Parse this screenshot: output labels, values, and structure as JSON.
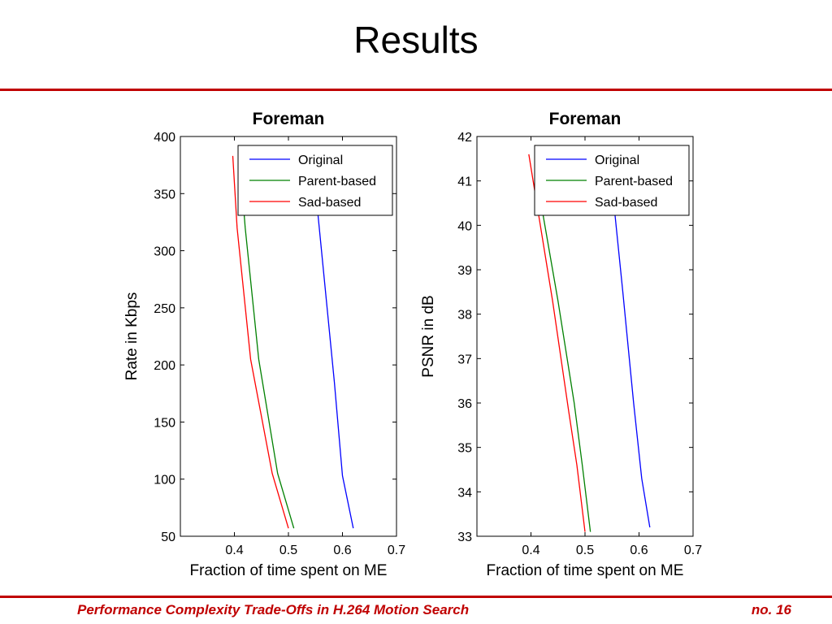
{
  "slide": {
    "title": "Results",
    "footer_title": "Performance Complexity Trade-Offs in H.264 Motion Search",
    "footer_page": "no. 16",
    "accent_color": "#c00000"
  },
  "chart_data": [
    {
      "type": "line",
      "title": "Foreman",
      "xlabel": "Fraction of time spent on ME",
      "ylabel": "Rate in Kbps",
      "xlim": [
        0.3,
        0.7
      ],
      "ylim": [
        50,
        400
      ],
      "xticks": [
        "0.4",
        "0.5",
        "0.6",
        "0.7"
      ],
      "yticks": [
        "50",
        "100",
        "150",
        "200",
        "250",
        "300",
        "350",
        "400"
      ],
      "grid": false,
      "legend_position": "top-right",
      "series": [
        {
          "name": "Original",
          "color": "#0000ff",
          "points": [
            [
              0.62,
              57
            ],
            [
              0.6,
              103
            ],
            [
              0.585,
              185
            ],
            [
              0.555,
              330
            ],
            [
              0.55,
              355
            ]
          ]
        },
        {
          "name": "Parent-based",
          "color": "#008000",
          "points": [
            [
              0.51,
              57
            ],
            [
              0.48,
              105
            ],
            [
              0.445,
              205
            ],
            [
              0.42,
              320
            ],
            [
              0.41,
              380
            ]
          ]
        },
        {
          "name": "Sad-based",
          "color": "#ff0000",
          "points": [
            [
              0.5,
              57
            ],
            [
              0.47,
              105
            ],
            [
              0.43,
              205
            ],
            [
              0.405,
              320
            ],
            [
              0.397,
              383
            ]
          ]
        }
      ]
    },
    {
      "type": "line",
      "title": "Foreman",
      "xlabel": "Fraction of time spent on ME",
      "ylabel": "PSNR in dB",
      "xlim": [
        0.3,
        0.7
      ],
      "ylim": [
        33,
        42
      ],
      "xticks": [
        "0.4",
        "0.5",
        "0.6",
        "0.7"
      ],
      "yticks": [
        "33",
        "34",
        "35",
        "36",
        "37",
        "38",
        "39",
        "40",
        "41",
        "42"
      ],
      "grid": false,
      "legend_position": "top-right",
      "series": [
        {
          "name": "Original",
          "color": "#0000ff",
          "points": [
            [
              0.62,
              33.2
            ],
            [
              0.605,
              34.3
            ],
            [
              0.59,
              36.0
            ],
            [
              0.57,
              38.5
            ],
            [
              0.555,
              40.3
            ]
          ]
        },
        {
          "name": "Parent-based",
          "color": "#008000",
          "points": [
            [
              0.51,
              33.1
            ],
            [
              0.495,
              34.6
            ],
            [
              0.48,
              36.0
            ],
            [
              0.45,
              38.3
            ],
            [
              0.41,
              41.1
            ]
          ]
        },
        {
          "name": "Sad-based",
          "color": "#ff0000",
          "points": [
            [
              0.5,
              33.1
            ],
            [
              0.485,
              34.6
            ],
            [
              0.47,
              35.8
            ],
            [
              0.44,
              38.3
            ],
            [
              0.396,
              41.6
            ]
          ]
        }
      ]
    }
  ]
}
